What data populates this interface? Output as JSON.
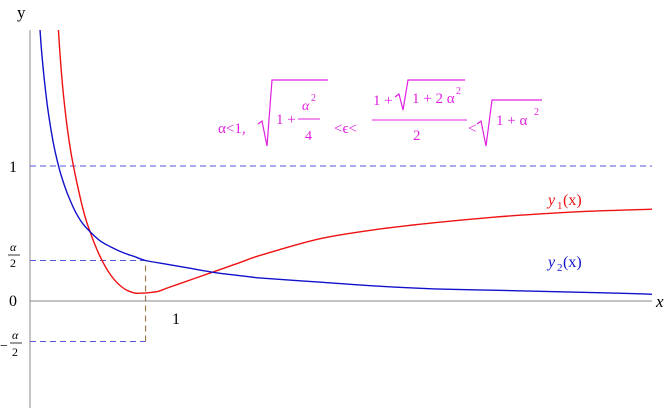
{
  "chart_data": {
    "type": "line",
    "title": "",
    "xlabel": "x",
    "ylabel": "y",
    "alpha": 0.6,
    "xlim": [
      0,
      5.38
    ],
    "ylim": [
      -0.78,
      2.25
    ],
    "y_ticks": [
      {
        "value": 1,
        "label": "1"
      },
      {
        "value": 0.3,
        "label_num": "α",
        "label_den": "2",
        "label_sign": ""
      },
      {
        "value": 0,
        "label": "0"
      },
      {
        "value": -0.3,
        "label_num": "α",
        "label_den": "2",
        "label_sign": "−"
      }
    ],
    "x_ticks": [
      {
        "value": 1,
        "label": "1"
      }
    ],
    "reference_lines": [
      {
        "name": "y-equals-1",
        "y": 1,
        "style": "dashed",
        "color": "#5555dd"
      },
      {
        "name": "y-equals-half-alpha",
        "y": 0.3,
        "x_to": 1,
        "style": "dashed",
        "color": "#5555dd"
      },
      {
        "name": "y-equals-minus-half-alpha",
        "y": -0.3,
        "x_to": 1,
        "style": "dashed",
        "color": "#5555dd"
      },
      {
        "name": "x-equals-1",
        "x": 1,
        "y_from": -0.3,
        "y_to": 0.3,
        "style": "dashed",
        "color": "#996633"
      }
    ],
    "series": [
      {
        "key": "y1",
        "label_main": "y",
        "label_sub": "1",
        "label_tail": "(x)",
        "color": "#ee1111",
        "x": [
          0.23,
          0.26,
          0.3,
          0.35,
          0.4,
          0.45,
          0.5,
          0.6,
          0.7,
          0.8,
          0.9,
          1.0,
          1.1,
          1.2,
          1.4,
          1.6,
          1.8,
          2.0,
          2.5,
          3.0,
          3.5,
          4.0,
          4.5,
          5.0,
          5.38
        ],
        "y": [
          2.25,
          1.82,
          1.44,
          1.12,
          0.9,
          0.71,
          0.56,
          0.34,
          0.19,
          0.1,
          0.06,
          0.06,
          0.07,
          0.1,
          0.16,
          0.22,
          0.28,
          0.34,
          0.46,
          0.53,
          0.58,
          0.62,
          0.65,
          0.67,
          0.68
        ]
      },
      {
        "key": "y2",
        "label_main": "y",
        "label_sub": "2",
        "label_tail": "(x)",
        "color": "#1111cc",
        "x": [
          0.07,
          0.1,
          0.15,
          0.2,
          0.25,
          0.3,
          0.35,
          0.4,
          0.45,
          0.5,
          0.6,
          0.7,
          0.8,
          0.9,
          1.0,
          1.2,
          1.4,
          1.6,
          1.8,
          2.0,
          2.5,
          3.0,
          3.5,
          4.0,
          4.5,
          5.0,
          5.38
        ],
        "y": [
          2.25,
          1.85,
          1.45,
          1.18,
          0.99,
          0.85,
          0.74,
          0.65,
          0.58,
          0.53,
          0.45,
          0.4,
          0.36,
          0.33,
          0.3,
          0.27,
          0.24,
          0.21,
          0.19,
          0.17,
          0.14,
          0.11,
          0.09,
          0.08,
          0.07,
          0.06,
          0.05
        ]
      }
    ],
    "annotation": {
      "color": "#e020e0",
      "alpha_lt": "α<1,",
      "sqrt1_a": "1 + ",
      "sqrt1_num": "α",
      "sqrt1_den": "4",
      "sup2": "2",
      "lt_eps": "<ϵ<",
      "frac_num_a": "1 + ",
      "frac_num_sqrt": "1 + 2 α",
      "frac_den": "2",
      "lt": "<",
      "sqrt3": "1 + α"
    }
  }
}
